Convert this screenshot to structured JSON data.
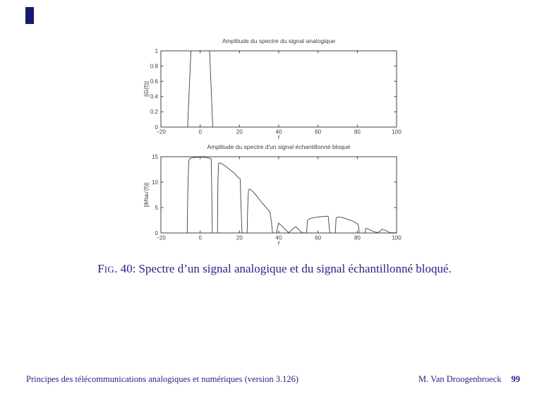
{
  "slide": {
    "corner_marker_color": "#181870",
    "background_color": "#ffffff",
    "accent_text_color": "#252585"
  },
  "caption": {
    "fig_first_letter": "F",
    "fig_small_caps": "IG",
    "fig_number": ". 40:",
    "text": "Spectre d’un signal analogique et du signal échantillonné bloqué."
  },
  "footer": {
    "left": "Principes des télécommunications analogiques et numériques (version 3.126)",
    "right_author": "M. Van Droogenbroeck",
    "right_page": "99"
  },
  "chart_data": [
    {
      "type": "line",
      "title": "Amplitude du spectre du signal analogique",
      "xlabel": "f",
      "ylabel": "||G(f)||",
      "xlim": [
        -20,
        100
      ],
      "ylim": [
        0,
        1
      ],
      "x_ticks": [
        -20,
        0,
        20,
        40,
        60,
        80,
        100
      ],
      "y_ticks": [
        0,
        0.2,
        0.4,
        0.6,
        0.8,
        1
      ],
      "grid": false,
      "legend": "none",
      "axis_color": "#404040",
      "line_color": "#404040",
      "series": [
        {
          "name": "|G(f)|",
          "points": [
            [
              -20,
              0
            ],
            [
              -6.4,
              0
            ],
            [
              -4.7,
              1
            ],
            [
              4.8,
              1
            ],
            [
              6.4,
              0
            ],
            [
              100,
              0
            ]
          ]
        }
      ]
    },
    {
      "type": "line",
      "title": "Amplitude du spectre d'un signal échantillonné bloqué",
      "xlabel": "f",
      "ylabel": "||Mtau'(f)||",
      "xlim": [
        -20,
        100
      ],
      "ylim": [
        0,
        15
      ],
      "x_ticks": [
        -20,
        0,
        20,
        40,
        60,
        80,
        100
      ],
      "y_ticks": [
        0,
        5,
        10,
        15
      ],
      "grid": false,
      "legend": "none",
      "axis_color": "#404040",
      "line_color": "#404040",
      "series": [
        {
          "name": "|Mtau'(f)|",
          "points": [
            [
              -20,
              0
            ],
            [
              -6.6,
              0
            ],
            [
              -6.3,
              8
            ],
            [
              -5.8,
              14.2
            ],
            [
              -5.1,
              14.7
            ],
            [
              -3,
              14.85
            ],
            [
              0,
              14.92
            ],
            [
              3,
              14.85
            ],
            [
              4.9,
              14.7
            ],
            [
              5.6,
              14.55
            ],
            [
              5.9,
              8
            ],
            [
              6.2,
              0
            ],
            [
              8.8,
              0
            ],
            [
              9.0,
              9
            ],
            [
              9.3,
              13.6
            ],
            [
              10,
              13.8
            ],
            [
              11.5,
              13.5
            ],
            [
              13,
              13.1
            ],
            [
              15,
              12.5
            ],
            [
              17,
              11.9
            ],
            [
              19,
              11.1
            ],
            [
              20.4,
              10.6
            ],
            [
              20.8,
              5
            ],
            [
              21.3,
              0
            ],
            [
              23.9,
              0
            ],
            [
              24.2,
              5
            ],
            [
              24.6,
              8.4
            ],
            [
              25.1,
              8.65
            ],
            [
              26.5,
              8.3
            ],
            [
              28.5,
              7.4
            ],
            [
              30.5,
              6.4
            ],
            [
              32.5,
              5.5
            ],
            [
              34.5,
              4.6
            ],
            [
              35.6,
              4.0
            ],
            [
              36.3,
              2.0
            ],
            [
              36.9,
              0
            ],
            [
              38.8,
              0
            ],
            [
              39.9,
              1.95
            ],
            [
              41.2,
              1.5
            ],
            [
              43,
              0.8
            ],
            [
              44.9,
              0.1
            ],
            [
              45.6,
              0.2
            ],
            [
              47,
              0.75
            ],
            [
              48.7,
              1.25
            ],
            [
              50.2,
              0.7
            ],
            [
              51.8,
              0.05
            ],
            [
              54.2,
              0
            ],
            [
              54.6,
              2.45
            ],
            [
              55.8,
              2.8
            ],
            [
              57.5,
              3.0
            ],
            [
              59.5,
              3.1
            ],
            [
              61.5,
              3.2
            ],
            [
              63.5,
              3.28
            ],
            [
              65.2,
              3.3
            ],
            [
              65.6,
              1.5
            ],
            [
              66.0,
              0
            ],
            [
              68.8,
              0
            ],
            [
              69.2,
              2.95
            ],
            [
              70.2,
              3.15
            ],
            [
              71.8,
              3.08
            ],
            [
              73.5,
              2.9
            ],
            [
              75.5,
              2.65
            ],
            [
              77.5,
              2.35
            ],
            [
              79.5,
              1.95
            ],
            [
              80.5,
              1.7
            ],
            [
              81.0,
              0
            ],
            [
              83.9,
              0
            ],
            [
              84.3,
              0.88
            ],
            [
              85.4,
              0.8
            ],
            [
              87,
              0.5
            ],
            [
              89,
              0.2
            ],
            [
              90.4,
              0.08
            ],
            [
              91.6,
              0.38
            ],
            [
              92.7,
              0.72
            ],
            [
              93.7,
              0.63
            ],
            [
              95.2,
              0.35
            ],
            [
              96.7,
              0.05
            ],
            [
              100,
              0.04
            ]
          ]
        }
      ]
    }
  ]
}
